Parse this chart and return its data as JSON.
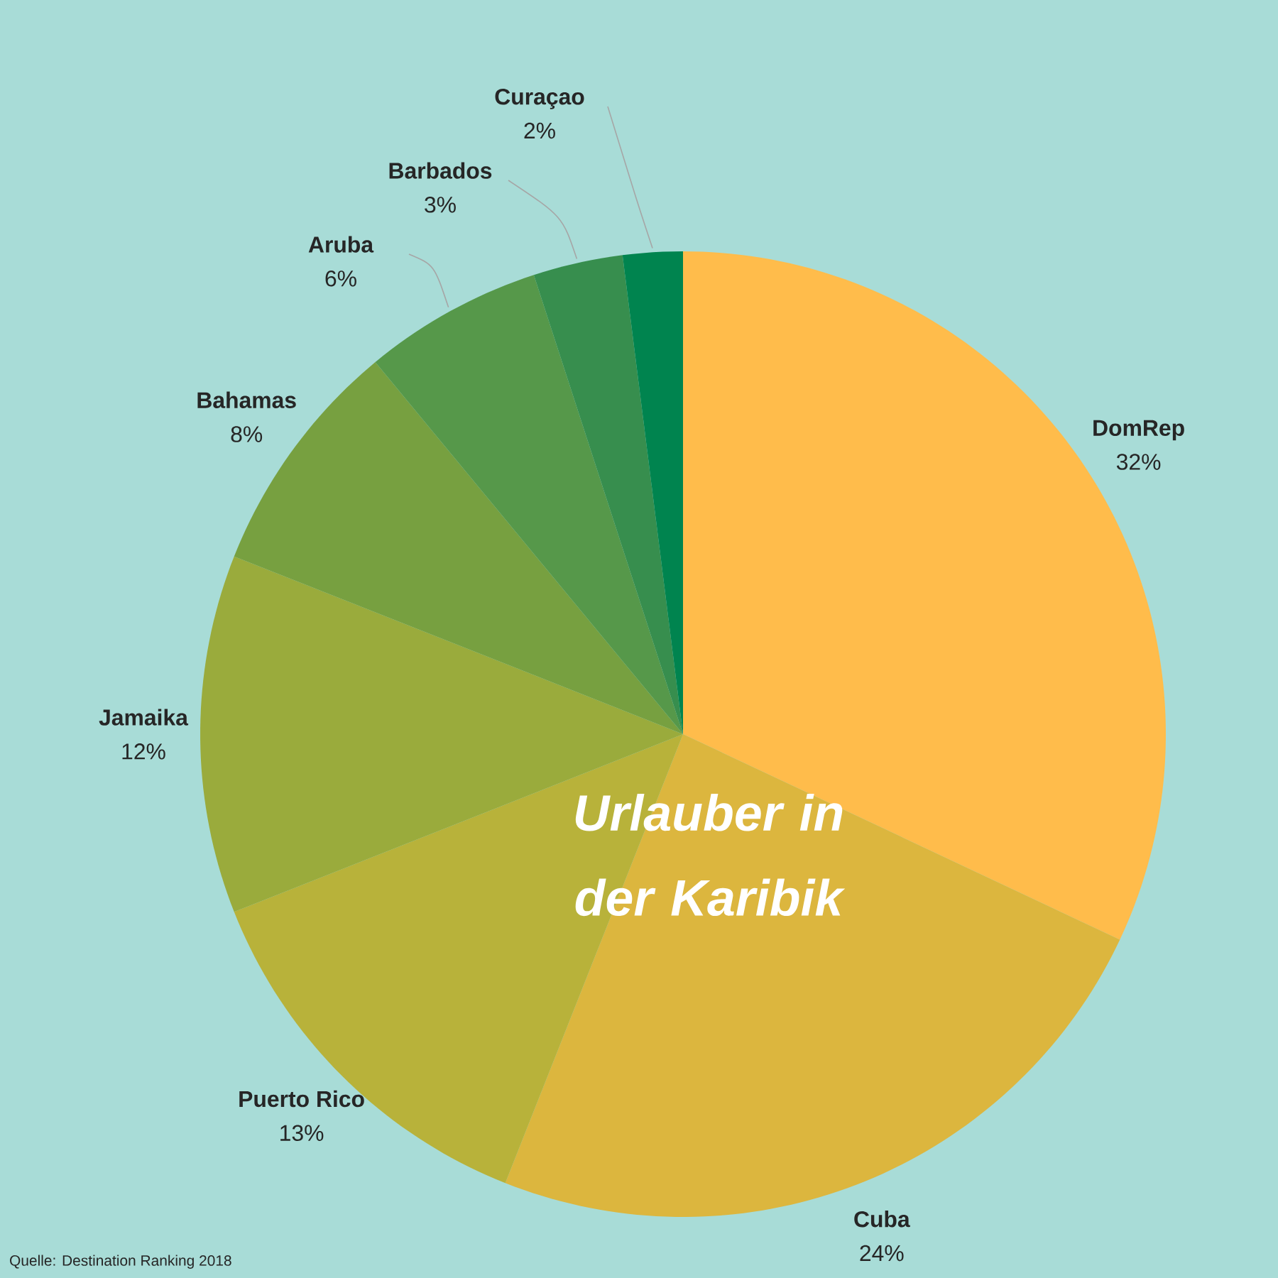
{
  "chart_data": {
    "type": "pie",
    "title": "Urlauber in der Karibik",
    "categories": [
      "DomRep",
      "Cuba",
      "Puerto Rico",
      "Jamaika",
      "Bahamas",
      "Aruba",
      "Barbados",
      "Curaçao"
    ],
    "values": [
      32,
      24,
      13,
      12,
      8,
      6,
      3,
      2
    ],
    "value_labels": [
      "32%",
      "24%",
      "13%",
      "12%",
      "8%",
      "6%",
      "3%",
      "2%"
    ],
    "colors": [
      "#ffbc4b",
      "#dcb63e",
      "#b8b23a",
      "#9aab3c",
      "#77a040",
      "#56984a",
      "#378e4e",
      "#00844f"
    ],
    "annotations": [
      "Quelle: Destination Ranking 2018"
    ]
  }
}
